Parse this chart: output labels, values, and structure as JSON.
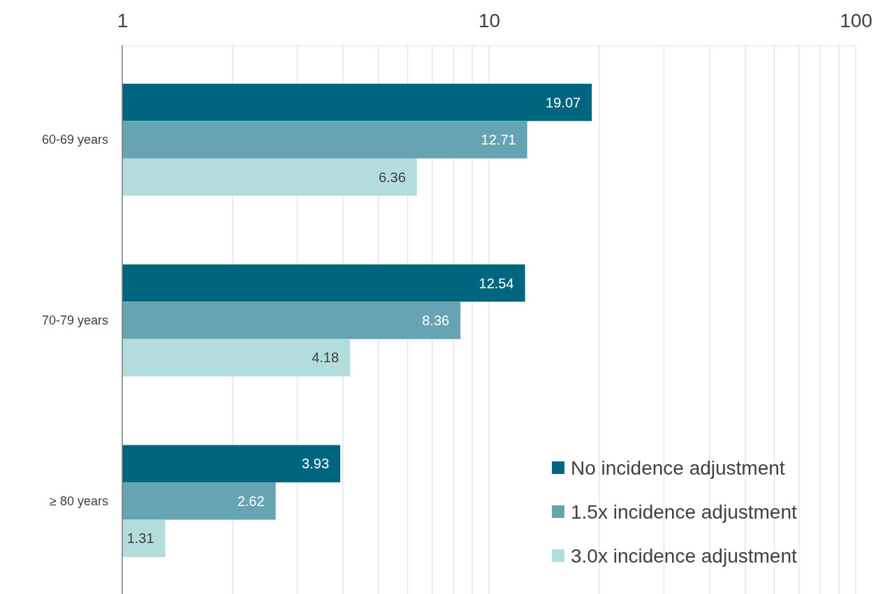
{
  "chart_data": {
    "type": "bar",
    "orientation": "horizontal",
    "log": "x",
    "categories": [
      "60-69 years",
      "70-79 years",
      "≥ 80 years"
    ],
    "series": [
      {
        "name": "No incidence adjustment",
        "color": "#00667f",
        "values": [
          19.07,
          12.54,
          3.93
        ]
      },
      {
        "name": "1.5x incidence adjustment",
        "color": "#66a3b3",
        "values": [
          12.71,
          8.36,
          2.62
        ]
      },
      {
        "name": "3.0x incidence adjustment",
        "color": "#b3dcdd",
        "values": [
          6.36,
          4.18,
          1.31
        ]
      }
    ],
    "xlim": [
      1,
      100
    ],
    "xticks": [
      1,
      {
        "value": 2,
        "label": null
      },
      {
        "value": 3,
        "label": null
      },
      {
        "value": 4,
        "label": null
      },
      {
        "value": 5,
        "label": null
      },
      {
        "value": 6,
        "label": null
      },
      {
        "value": 7,
        "label": null
      },
      {
        "value": 8,
        "label": null
      },
      {
        "value": 9,
        "label": null
      },
      10,
      {
        "value": 20,
        "label": null
      },
      {
        "value": 30,
        "label": null
      },
      {
        "value": 40,
        "label": null
      },
      {
        "value": 50,
        "label": null
      },
      {
        "value": 60,
        "label": null
      },
      {
        "value": 70,
        "label": null
      },
      {
        "value": 80,
        "label": null
      },
      {
        "value": 90,
        "label": null
      },
      100
    ],
    "grid": "x",
    "legend": "bottom right",
    "data_labels": true
  }
}
